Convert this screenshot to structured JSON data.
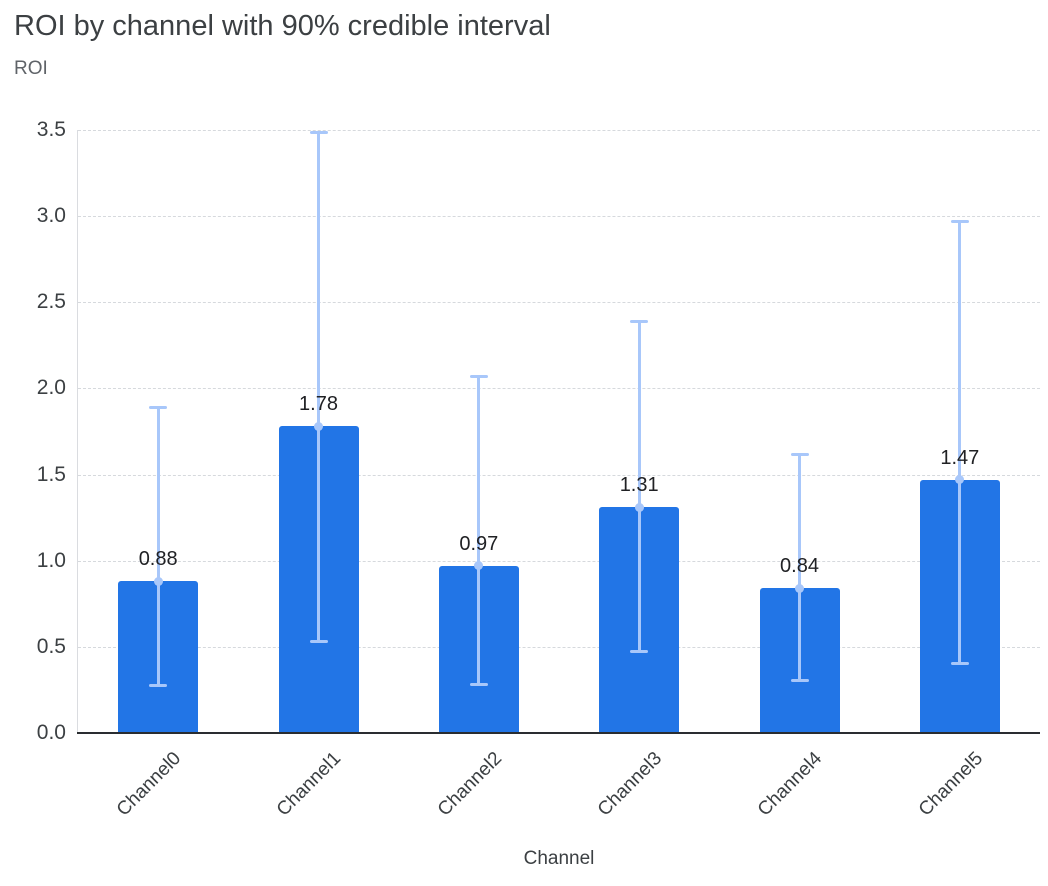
{
  "chart_data": {
    "type": "bar",
    "title": "ROI by channel with 90% credible interval",
    "ylabel": "ROI",
    "xlabel": "Channel",
    "categories": [
      "Channel0",
      "Channel1",
      "Channel2",
      "Channel3",
      "Channel4",
      "Channel5"
    ],
    "values": [
      0.88,
      1.78,
      0.97,
      1.31,
      0.84,
      1.47
    ],
    "data_labels": [
      "0.88",
      "1.78",
      "0.97",
      "1.31",
      "0.84",
      "1.47"
    ],
    "error_low": [
      0.27,
      0.53,
      0.28,
      0.47,
      0.3,
      0.4
    ],
    "error_high": [
      1.89,
      3.49,
      2.07,
      2.39,
      1.62,
      2.97
    ],
    "y_ticks": [
      "0.0",
      "0.5",
      "1.0",
      "1.5",
      "2.0",
      "2.5",
      "3.0",
      "3.5"
    ],
    "ylim": [
      0,
      3.5
    ],
    "grid": "horizontal-dashed",
    "legend": "none",
    "colors": {
      "bar": "#2275e6",
      "error_bar": "#a8c7fa",
      "gridline": "#d6d9dd",
      "axis": "#2a2d31",
      "title_text": "#3c4043",
      "tick_text": "#3c4043"
    }
  }
}
